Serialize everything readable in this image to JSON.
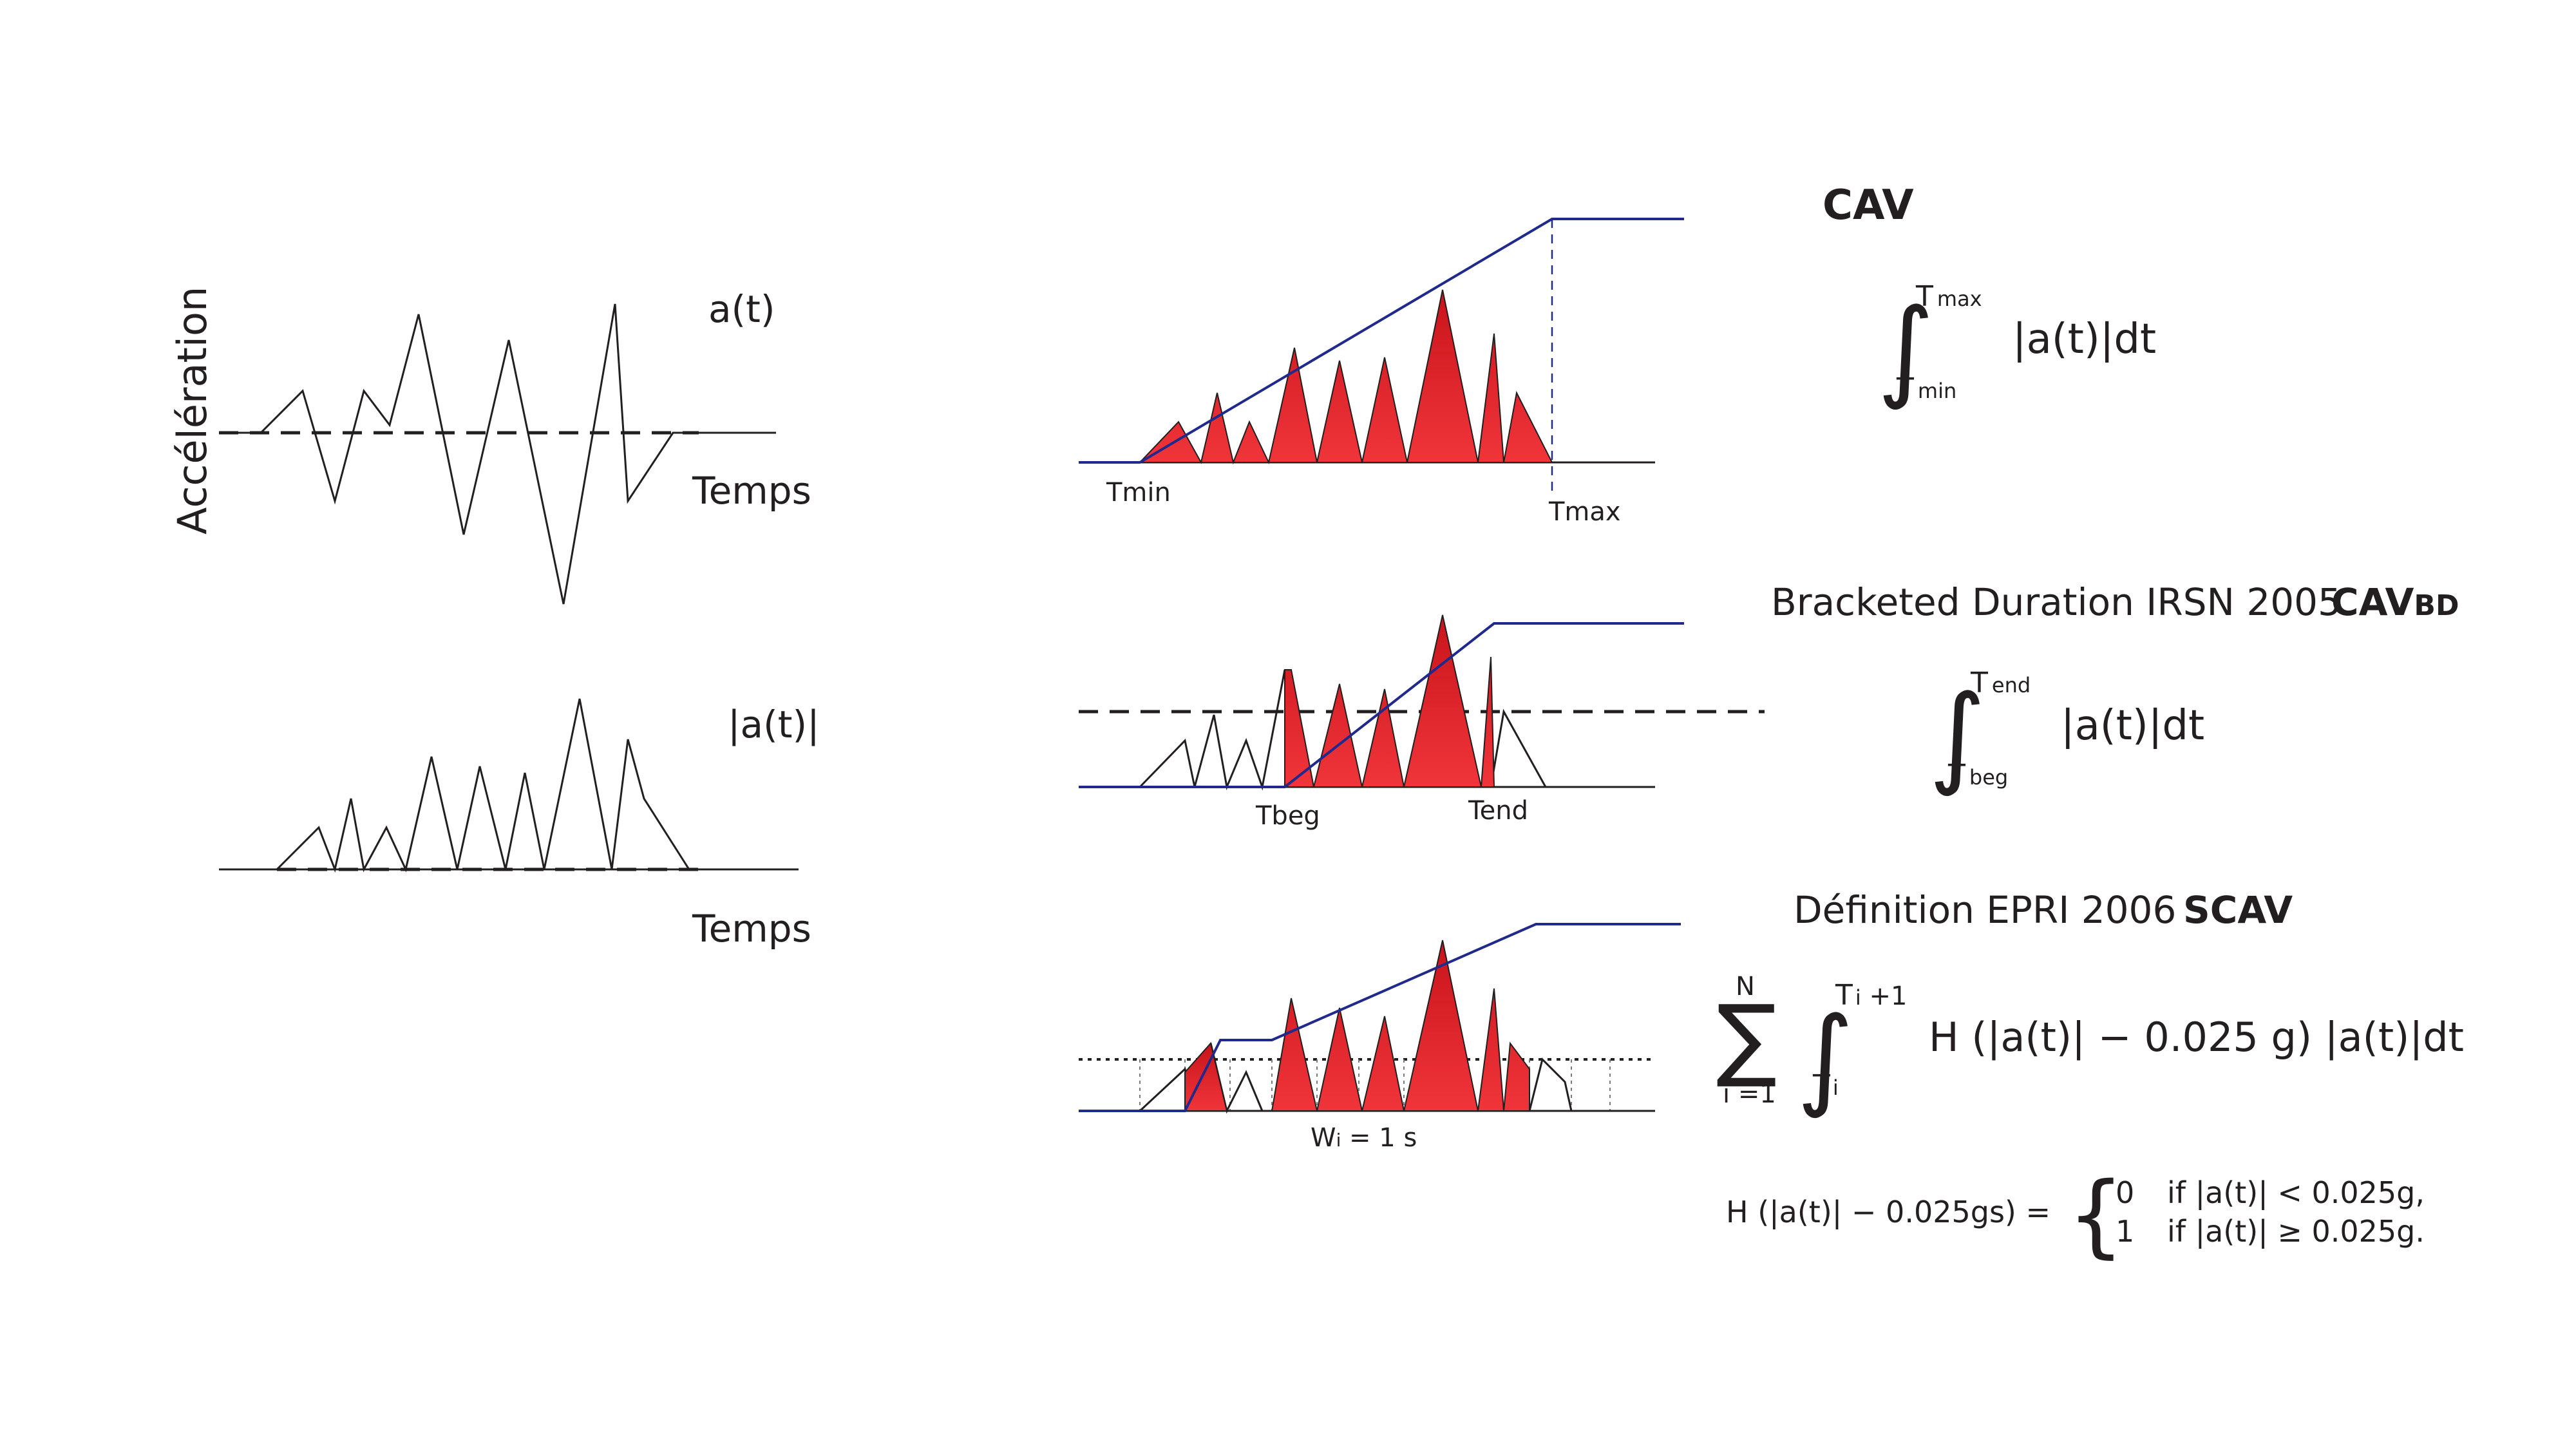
{
  "left": {
    "y_axis_label": "Accélération",
    "signal_label": "a(t)",
    "abs_signal_label": "|a(t)|",
    "time_label_top": "Temps",
    "time_label_bottom": "Temps"
  },
  "cav": {
    "title": "CAV",
    "tmin_label": "Tmin",
    "tmax_label": "Tmax",
    "formula": {
      "upper": "T",
      "upper_sub": "max",
      "lower": "T",
      "lower_sub": "min",
      "integrand": "|a(t)|dt"
    }
  },
  "cavbd": {
    "title": "Bracketed Duration IRSN 2005",
    "short": "CAV",
    "short_sub": "BD",
    "tbeg_label": "Tbeg",
    "tend_label": "Tend",
    "formula": {
      "upper": "T",
      "upper_sub": "end",
      "lower": "T",
      "lower_sub": "beg",
      "integrand": "|a(t)|dt"
    }
  },
  "scav": {
    "title": "Définition EPRI 2006",
    "short": "SCAV",
    "window_label_w": "W",
    "window_label_sub": "i",
    "window_label_rest": " = 1 s",
    "formula": {
      "sum_top": "N",
      "sum_bottom": "i =1",
      "upper": "T",
      "upper_sub": "i",
      "upper_rest": " +1",
      "lower": "T",
      "lower_sub": "i",
      "integrand": "H (|a(t)| −  0.025 g)  |a(t)|dt"
    },
    "heaviside": {
      "lhs": "H (|a(t)| −  0.025gs) =",
      "case1_value": "0",
      "case1_cond": "if |a(t)| <  0.025g,",
      "case2_value": "1",
      "case2_cond": "if |a(t)| ≥  0.025g."
    }
  },
  "colors": {
    "ink": "#231f20",
    "cumulative_line": "#1f2a8c",
    "red_fill": "#e5232a",
    "red_dark": "#b3161c"
  },
  "icons": {
    "integral": "∫",
    "summation": "∑",
    "brace": "{"
  }
}
